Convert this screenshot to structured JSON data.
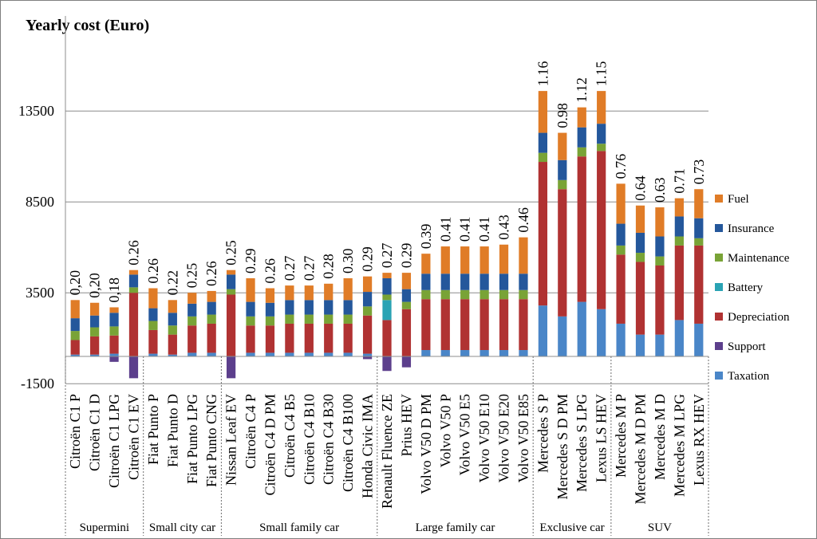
{
  "chart_data": {
    "type": "bar",
    "stacked": true,
    "title": "Yearly cost (Euro)",
    "ylim": [
      -1500,
      16000
    ],
    "yticks": [
      -1500,
      3500,
      8500,
      13500
    ],
    "yticks_labels": [
      "-1500",
      "3500",
      "8500",
      "13500"
    ],
    "grid": true,
    "legend_position": "right",
    "categories": [
      "Citroën C1 P",
      "Citroën C1 D",
      "Citroën C1 LPG",
      "Citroën C1 EV",
      "Fiat Punto P",
      "Fiat Punto D",
      "Fiat Punto LPG",
      "Fiat Punto CNG",
      "Nissan Leaf EV",
      "Citroën C4 P",
      "Citroën C4 D PM",
      "Citroën C4 B5",
      "Citroën C4 B10",
      "Citroën C4 B30",
      "Citroën C4 B100",
      "Honda Civic IMA",
      "Renault Fluence ZE",
      "Prius HEV",
      "Volvo V50 D PM",
      "Volvo V50 P",
      "Volvo V50 E5",
      "Volvo V50 E10",
      "Volvo V50 E20",
      "Volvo V50 E85",
      "Mercedes S P",
      "Mercedes S D PM",
      "Mercedes S LPG",
      "Lexus LS HEV",
      "Mercedes M P",
      "Mercedes M D PM",
      "Mercedes M D",
      "Mercedes M LPG",
      "Lexus RX HEV"
    ],
    "bar_labels": [
      "0,20",
      "0,20",
      "0,18",
      "0.26",
      "0.26",
      "0.22",
      "0.25",
      "0.26",
      "0.25",
      "0.29",
      "0.26",
      "0.27",
      "0.27",
      "0.28",
      "0.30",
      "0.29",
      "0.27",
      "0.29",
      "0.39",
      "0.41",
      "0.41",
      "0.41",
      "0.43",
      "0.46",
      "1.16",
      "0.98",
      "1.12",
      "1.15",
      "0.76",
      "0.64",
      "0.63",
      "0.71",
      "0.73"
    ],
    "groups": [
      {
        "name": "Supermini",
        "count": 4
      },
      {
        "name": "Small city car",
        "count": 4
      },
      {
        "name": "Small family  car",
        "count": 8
      },
      {
        "name": "Large family car",
        "count": 8
      },
      {
        "name": "Exclusive car",
        "count": 4
      },
      {
        "name": "SUV",
        "count": 5
      }
    ],
    "series": [
      {
        "name": "Taxation",
        "color": "#4a86c8",
        "values": [
          100,
          100,
          150,
          0,
          150,
          100,
          200,
          200,
          0,
          200,
          200,
          200,
          200,
          200,
          200,
          150,
          0,
          0,
          350,
          350,
          350,
          350,
          350,
          350,
          2800,
          2200,
          3000,
          2600,
          1800,
          1200,
          1200,
          2000,
          1800
        ]
      },
      {
        "name": "Support",
        "color": "#5c3f8c",
        "values": [
          0,
          0,
          -300,
          -1200,
          0,
          0,
          0,
          0,
          -1200,
          0,
          0,
          0,
          0,
          0,
          0,
          -150,
          -800,
          -600,
          0,
          0,
          0,
          0,
          0,
          0,
          0,
          0,
          0,
          0,
          0,
          0,
          0,
          0,
          0
        ]
      },
      {
        "name": "Depreciation",
        "color": "#b03232",
        "values": [
          800,
          1000,
          1000,
          3500,
          1300,
          1100,
          1500,
          1600,
          3400,
          1500,
          1500,
          1600,
          1600,
          1600,
          1600,
          2100,
          2000,
          2600,
          2800,
          2800,
          2800,
          2800,
          2800,
          2800,
          7900,
          7000,
          8000,
          8700,
          3800,
          4000,
          3800,
          4100,
          4300
        ]
      },
      {
        "name": "Battery",
        "color": "#2aa3b4",
        "values": [
          0,
          0,
          0,
          0,
          0,
          0,
          0,
          0,
          0,
          0,
          0,
          0,
          0,
          0,
          0,
          0,
          1100,
          0,
          0,
          0,
          0,
          0,
          0,
          0,
          0,
          0,
          0,
          0,
          0,
          0,
          0,
          0,
          0
        ]
      },
      {
        "name": "Maintenance",
        "color": "#79a336",
        "values": [
          500,
          500,
          500,
          300,
          500,
          500,
          500,
          500,
          300,
          500,
          500,
          500,
          500,
          500,
          500,
          500,
          300,
          400,
          500,
          500,
          500,
          500,
          500,
          500,
          500,
          500,
          500,
          400,
          500,
          500,
          500,
          500,
          400
        ]
      },
      {
        "name": "Insurance",
        "color": "#24579b",
        "values": [
          700,
          650,
          750,
          700,
          700,
          700,
          700,
          700,
          800,
          800,
          750,
          800,
          800,
          800,
          800,
          800,
          900,
          700,
          900,
          900,
          900,
          900,
          900,
          900,
          1100,
          1100,
          1100,
          1100,
          1200,
          1100,
          1100,
          1100,
          1100
        ]
      },
      {
        "name": "Fuel",
        "color": "#e07c27",
        "values": [
          1000,
          700,
          300,
          250,
          1100,
          700,
          600,
          600,
          250,
          1300,
          800,
          800,
          800,
          900,
          1200,
          850,
          300,
          900,
          1100,
          1500,
          1500,
          1500,
          1600,
          2000,
          2300,
          1500,
          1100,
          1800,
          2200,
          1500,
          1600,
          1000,
          1600
        ]
      }
    ]
  }
}
